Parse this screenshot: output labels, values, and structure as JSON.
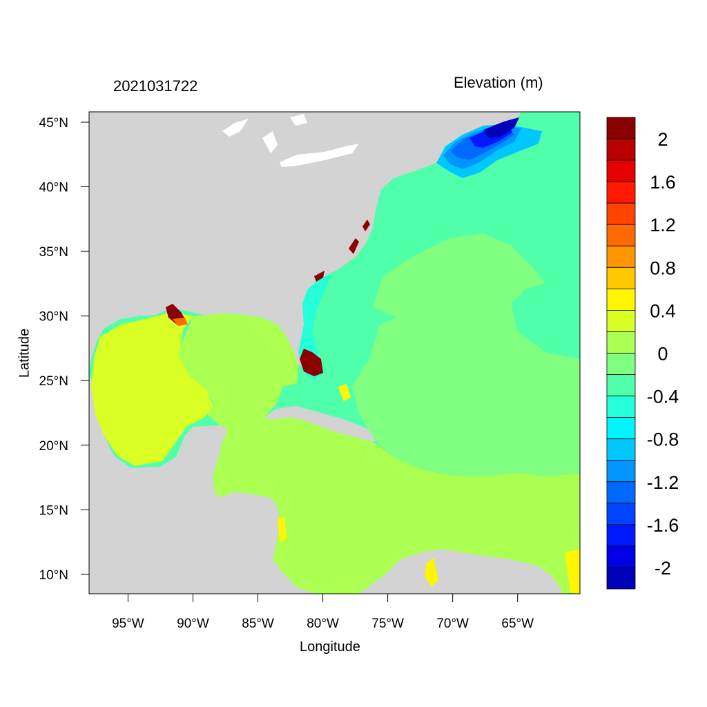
{
  "header": {
    "left_title": "2021031722",
    "right_title": "Elevation (m)"
  },
  "axes": {
    "xlabel": "Longitude",
    "ylabel": "Latitude",
    "lon_range": [
      -98,
      -60.2
    ],
    "lat_range": [
      8.5,
      45.8
    ],
    "xticks": [
      {
        "lon": -95,
        "label": "95°W"
      },
      {
        "lon": -90,
        "label": "90°W"
      },
      {
        "lon": -85,
        "label": "85°W"
      },
      {
        "lon": -80,
        "label": "80°W"
      },
      {
        "lon": -75,
        "label": "75°W"
      },
      {
        "lon": -70,
        "label": "70°W"
      },
      {
        "lon": -65,
        "label": "65°W"
      }
    ],
    "yticks": [
      {
        "lat": 45,
        "label": "45°N"
      },
      {
        "lat": 40,
        "label": "40°N"
      },
      {
        "lat": 35,
        "label": "35°N"
      },
      {
        "lat": 30,
        "label": "30°N"
      },
      {
        "lat": 25,
        "label": "25°N"
      },
      {
        "lat": 20,
        "label": "20°N"
      },
      {
        "lat": 15,
        "label": "15°N"
      },
      {
        "lat": 10,
        "label": "10°N"
      }
    ]
  },
  "colorbar": {
    "colors_top_to_bottom": [
      "#8b0000",
      "#b80000",
      "#e60000",
      "#ff1a00",
      "#ff4400",
      "#ff6a00",
      "#ff9500",
      "#ffc800",
      "#fff500",
      "#d9ff24",
      "#aaff50",
      "#80ff80",
      "#50ffaa",
      "#24ffd9",
      "#00f5ff",
      "#00c8ff",
      "#0095ff",
      "#006aff",
      "#0044ff",
      "#0019ff",
      "#0000e6",
      "#0000b8"
    ],
    "labels": [
      "2",
      "1.6",
      "1.2",
      "0.8",
      "0.4",
      "0",
      "-0.4",
      "-0.8",
      "-1.2",
      "-1.6",
      "-2"
    ]
  },
  "land_color": "#d3d3d3"
}
